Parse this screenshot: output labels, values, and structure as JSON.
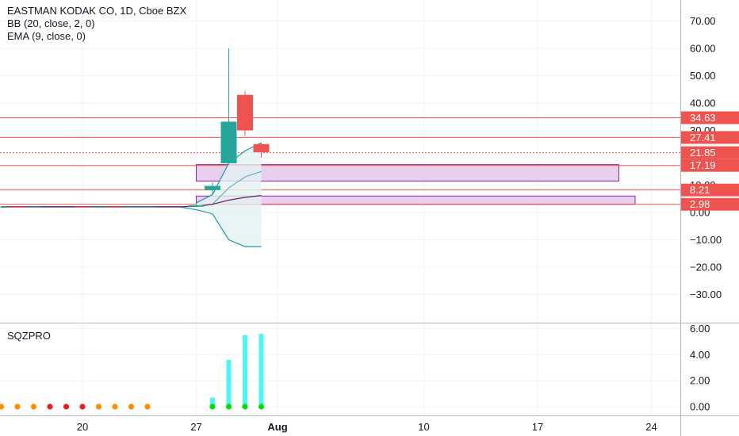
{
  "header": {
    "symbol_line": "EASTMAN KODAK CO, 1D, Cboe BZX",
    "bb_line": "BB (20, close, 2, 0)",
    "ema_line": "EMA (9, close, 0)",
    "sqz_label": "SQZPRO"
  },
  "colors": {
    "up": "#26a69a",
    "down": "#ef5350",
    "bb_band": "#2196a6",
    "bb_fill": "#e3f2f3",
    "ema": "#6a1b5a",
    "zone_fill": "#e1bee7",
    "zone_border": "#8e24aa",
    "level": "#ef5350",
    "sqz_bar": "#4ef6f6",
    "dot_orange": "#ff8c00",
    "dot_red": "#e91e1e",
    "dot_green": "#00e000"
  },
  "chart_data": [
    {
      "type": "candlestick",
      "ylim": [
        -40,
        75
      ],
      "y_ticks": [
        "70.00",
        "60.00",
        "50.00",
        "40.00",
        "30.00",
        "20.00",
        "10.00",
        "0.00",
        "−10.00",
        "−20.00",
        "−30.00"
      ],
      "x_ticks": [
        {
          "label": "20",
          "day": 20
        },
        {
          "label": "27",
          "day": 27
        },
        {
          "label": "Aug",
          "day": 32
        },
        {
          "label": "10",
          "day": 41
        },
        {
          "label": "17",
          "day": 48
        },
        {
          "label": "24",
          "day": 55
        }
      ],
      "candles": [
        {
          "day": 15,
          "o": 2.0,
          "h": 2.2,
          "l": 1.9,
          "c": 2.1
        },
        {
          "day": 16,
          "o": 2.1,
          "h": 2.2,
          "l": 1.9,
          "c": 2.0
        },
        {
          "day": 17,
          "o": 2.0,
          "h": 2.2,
          "l": 1.9,
          "c": 2.1
        },
        {
          "day": 20,
          "o": 2.1,
          "h": 2.2,
          "l": 1.9,
          "c": 2.0
        },
        {
          "day": 21,
          "o": 2.0,
          "h": 2.2,
          "l": 1.9,
          "c": 2.1
        },
        {
          "day": 22,
          "o": 2.1,
          "h": 2.2,
          "l": 1.9,
          "c": 2.0
        },
        {
          "day": 23,
          "o": 2.0,
          "h": 2.2,
          "l": 1.9,
          "c": 2.1
        },
        {
          "day": 24,
          "o": 2.1,
          "h": 2.2,
          "l": 1.9,
          "c": 2.1
        },
        {
          "day": 27,
          "o": 2.1,
          "h": 3.4,
          "l": 2.0,
          "c": 2.6
        },
        {
          "day": 28,
          "o": 8.2,
          "h": 11.0,
          "l": 6.5,
          "c": 9.7
        },
        {
          "day": 29,
          "o": 18.0,
          "h": 60.0,
          "l": 17.5,
          "c": 33.2
        },
        {
          "day": 30,
          "o": 43.0,
          "h": 44.5,
          "l": 28.0,
          "c": 30.0
        },
        {
          "day": 31,
          "o": 25.0,
          "h": 25.5,
          "l": 20.0,
          "c": 22.0
        }
      ],
      "bb_upper": [
        [
          27,
          3.5
        ],
        [
          28,
          6.5
        ],
        [
          29,
          18.0
        ],
        [
          30,
          22.5
        ],
        [
          31,
          25.5
        ]
      ],
      "bb_basis": [
        [
          27,
          2.2
        ],
        [
          28,
          3.0
        ],
        [
          29,
          9.0
        ],
        [
          30,
          13.0
        ],
        [
          31,
          15.0
        ]
      ],
      "bb_lower": [
        [
          15,
          2.0
        ],
        [
          26,
          2.0
        ],
        [
          27,
          1.0
        ],
        [
          28,
          -0.5
        ],
        [
          29,
          -10.0
        ],
        [
          30,
          -12.5
        ],
        [
          31,
          -12.5
        ]
      ],
      "ema": [
        [
          15,
          2.1
        ],
        [
          26,
          2.1
        ],
        [
          27,
          2.2
        ],
        [
          28,
          3.0
        ],
        [
          29,
          4.5
        ],
        [
          30,
          5.5
        ],
        [
          31,
          6.2
        ]
      ],
      "zones": [
        {
          "from_day": 27,
          "to_day": 53,
          "top": 17.5,
          "bottom": 11.5
        },
        {
          "from_day": 27,
          "to_day": 54,
          "top": 6.0,
          "bottom": 3.0
        }
      ],
      "levels": [
        {
          "value": 34.63,
          "label": "34.63",
          "dashed": false
        },
        {
          "value": 27.41,
          "label": "27.41",
          "dashed": false
        },
        {
          "value": 21.85,
          "label": "21.85",
          "dashed": true
        },
        {
          "value": 17.19,
          "label": "17.19",
          "dashed": false
        },
        {
          "value": 8.21,
          "label": "8.21",
          "dashed": false
        },
        {
          "value": 2.98,
          "label": "2.98",
          "dashed": false
        }
      ]
    },
    {
      "type": "bar",
      "title": "SQZPRO",
      "ylim": [
        -0.8,
        6.5
      ],
      "y_ticks": [
        "6.00",
        "4.00",
        "2.00",
        "0.00"
      ],
      "bars": [
        {
          "day": 28,
          "value": 0.7
        },
        {
          "day": 29,
          "value": 3.6
        },
        {
          "day": 30,
          "value": 5.5
        },
        {
          "day": 31,
          "value": 5.6
        }
      ],
      "dots": [
        {
          "day": 15,
          "state": "orange"
        },
        {
          "day": 16,
          "state": "orange"
        },
        {
          "day": 17,
          "state": "orange"
        },
        {
          "day": 18,
          "state": "red"
        },
        {
          "day": 19,
          "state": "red"
        },
        {
          "day": 20,
          "state": "red"
        },
        {
          "day": 21,
          "state": "orange"
        },
        {
          "day": 22,
          "state": "orange"
        },
        {
          "day": 23,
          "state": "orange"
        },
        {
          "day": 24,
          "state": "orange"
        },
        {
          "day": 28,
          "state": "green"
        },
        {
          "day": 29,
          "state": "green"
        },
        {
          "day": 30,
          "state": "green"
        },
        {
          "day": 31,
          "state": "green"
        }
      ]
    }
  ]
}
